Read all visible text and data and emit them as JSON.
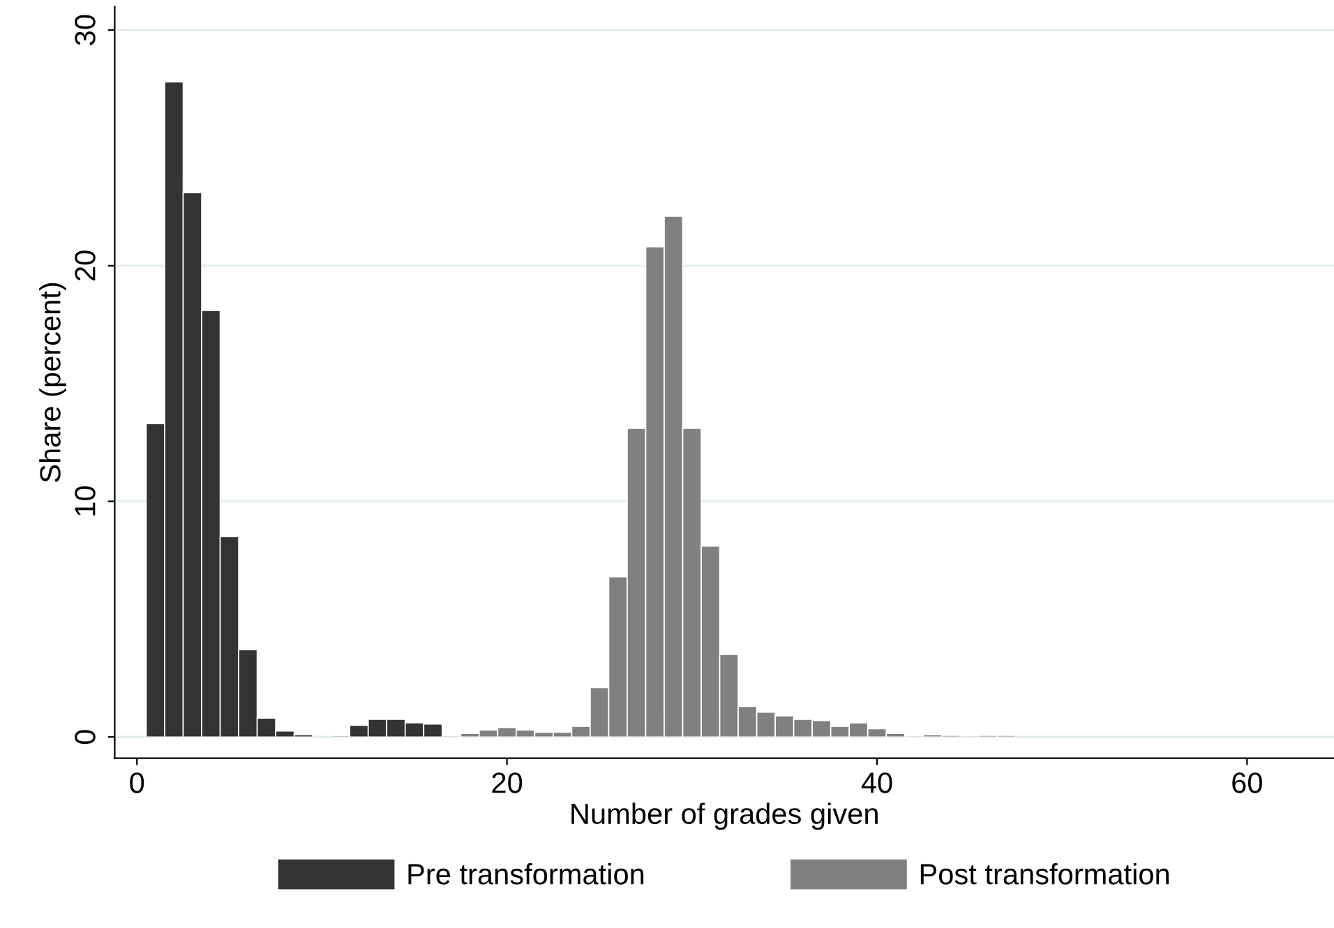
{
  "chart_data": {
    "type": "histogram",
    "xlabel": "Number of grades given",
    "ylabel": "Share (percent)",
    "xlim": [
      -1.2,
      64.7
    ],
    "xticks": [
      0,
      20,
      40,
      60
    ],
    "ylim": [
      -0.9,
      31
    ],
    "yticks": [
      0,
      10,
      20,
      30
    ],
    "grid": "y",
    "legend": "bottom",
    "bins": [
      0.5,
      1.5,
      2.5,
      3.5,
      4.5,
      5.5,
      6.5,
      7.5,
      8.5,
      9.5,
      10.5,
      11.5,
      12.5,
      13.5,
      14.5,
      15.5,
      16.5,
      17.5,
      18.5,
      19.5,
      20.5,
      21.5,
      22.5,
      23.5,
      24.5,
      25.5,
      26.5,
      27.5,
      28.5,
      29.5,
      30.5,
      31.5,
      32.5,
      33.5,
      34.5,
      35.5,
      36.5,
      37.5,
      38.5,
      39.5,
      40.5,
      41.5,
      42.5,
      43.5,
      44.5,
      45.5,
      46.5,
      47.5,
      48.5,
      49.5,
      50.5,
      51.5,
      52.5,
      53.5,
      54.5,
      55.5,
      56.5,
      57.5,
      58.5,
      59.5,
      60.5,
      61.5,
      62.5,
      63.5,
      64.5
    ],
    "series": [
      {
        "name": "Pre transformation",
        "color": "#333333",
        "values": [
          13.3,
          27.8,
          23.1,
          18.1,
          8.5,
          3.7,
          0.8,
          0.25,
          0.1,
          null,
          0.05,
          0.5,
          0.75,
          0.75,
          0.6,
          0.55,
          null,
          null,
          null,
          null,
          null,
          null,
          null,
          null,
          null,
          null,
          null,
          null,
          null,
          null,
          null,
          null,
          null,
          null,
          null,
          null,
          null,
          null,
          null,
          null,
          null,
          null,
          null,
          null,
          null,
          null,
          null,
          null,
          null,
          null,
          null,
          null,
          null,
          null,
          null,
          null,
          null,
          null,
          null,
          null,
          null,
          null,
          null,
          null
        ]
      },
      {
        "name": "Post transformation",
        "color": "#808080",
        "values": [
          null,
          null,
          null,
          null,
          null,
          null,
          null,
          null,
          null,
          null,
          null,
          null,
          null,
          null,
          null,
          null,
          0.05,
          0.15,
          0.3,
          0.4,
          0.3,
          0.2,
          0.2,
          0.45,
          2.1,
          6.8,
          13.1,
          20.8,
          22.1,
          13.1,
          8.1,
          3.5,
          1.3,
          1.05,
          0.9,
          0.75,
          0.7,
          0.45,
          0.6,
          0.35,
          0.15,
          0.05,
          0.1,
          0.07,
          0.05,
          0.07,
          0.07,
          null,
          null,
          null,
          null,
          null,
          null,
          null,
          null,
          null,
          null,
          null,
          null,
          null,
          null,
          null,
          null,
          null
        ]
      }
    ]
  }
}
